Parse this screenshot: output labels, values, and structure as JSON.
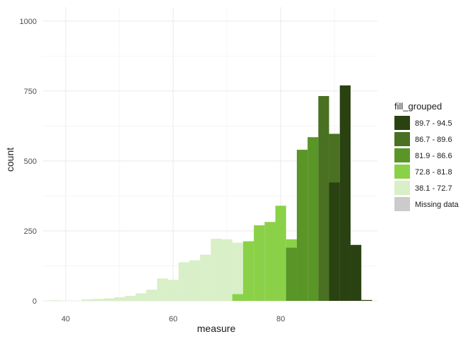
{
  "chart_data": {
    "type": "bar",
    "subtype": "histogram",
    "xlabel": "measure",
    "ylabel": "count",
    "xlim": [
      35.8,
      98
    ],
    "ylim": [
      0,
      1050
    ],
    "x_ticks": [
      40,
      60,
      80
    ],
    "y_ticks": [
      0,
      250,
      500,
      750,
      1000
    ],
    "grid": true,
    "legend": {
      "title": "fill_grouped",
      "position": "right",
      "entries": [
        {
          "label": "89.7 - 94.5",
          "color": "#2a4212"
        },
        {
          "label": "86.7 - 89.6",
          "color": "#4a7021"
        },
        {
          "label": "81.9 - 86.6",
          "color": "#5a9528"
        },
        {
          "label": "72.8 - 81.8",
          "color": "#8ad148"
        },
        {
          "label": "38.1 - 72.7",
          "color": "#d8efc7"
        },
        {
          "label": "Missing data",
          "color": "#cbcbcb"
        }
      ]
    },
    "bin_width": 2,
    "bins": [
      {
        "x": 38,
        "y": 2,
        "group": 4
      },
      {
        "x": 44,
        "y": 5,
        "group": 4
      },
      {
        "x": 46,
        "y": 7,
        "group": 4
      },
      {
        "x": 48,
        "y": 9,
        "group": 4
      },
      {
        "x": 50,
        "y": 13,
        "group": 4
      },
      {
        "x": 52,
        "y": 18,
        "group": 4
      },
      {
        "x": 54,
        "y": 27,
        "group": 4
      },
      {
        "x": 56,
        "y": 40,
        "group": 4
      },
      {
        "x": 58,
        "y": 80,
        "group": 4
      },
      {
        "x": 60,
        "y": 75,
        "group": 4
      },
      {
        "x": 62,
        "y": 138,
        "group": 4
      },
      {
        "x": 64,
        "y": 145,
        "group": 4
      },
      {
        "x": 66,
        "y": 165,
        "group": 4
      },
      {
        "x": 68,
        "y": 222,
        "group": 4
      },
      {
        "x": 70,
        "y": 220,
        "group": 4
      },
      {
        "x": 72,
        "y": 208,
        "group": 4
      },
      {
        "x": 72,
        "y": 24,
        "group": 3
      },
      {
        "x": 74,
        "y": 213,
        "group": 3
      },
      {
        "x": 76,
        "y": 270,
        "group": 3
      },
      {
        "x": 78,
        "y": 282,
        "group": 3
      },
      {
        "x": 80,
        "y": 340,
        "group": 3
      },
      {
        "x": 82,
        "y": 220,
        "group": 3
      },
      {
        "x": 82,
        "y": 190,
        "group": 2
      },
      {
        "x": 84,
        "y": 540,
        "group": 2
      },
      {
        "x": 86,
        "y": 585,
        "group": 2
      },
      {
        "x": 88,
        "y": 45,
        "group": 2
      },
      {
        "x": 88,
        "y": 732,
        "group": 1
      },
      {
        "x": 90,
        "y": 597,
        "group": 1
      },
      {
        "x": 90,
        "y": 423,
        "group": 0
      },
      {
        "x": 92,
        "y": 770,
        "group": 0
      },
      {
        "x": 94,
        "y": 200,
        "group": 0
      },
      {
        "x": 96,
        "y": 3,
        "group": 0
      }
    ]
  }
}
